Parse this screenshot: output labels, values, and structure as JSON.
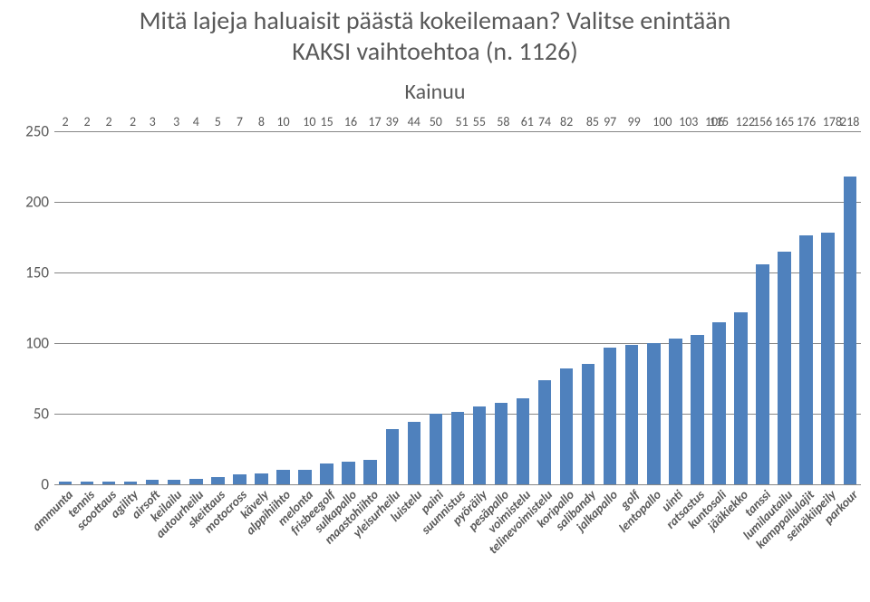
{
  "title_line1": "Mitä lajeja haluaisit päästä kokeilemaan? Valitse enintään",
  "title_line2": "KAKSI vaihtoehtoa (n. 1126)",
  "region_label": "Kainuu",
  "chart": {
    "type": "bar",
    "ylim": [
      0,
      250
    ],
    "ytick_step": 50,
    "yticks": [
      0,
      50,
      100,
      150,
      200,
      250
    ],
    "bar_color": "#4f81bd",
    "grid_color": "#868686",
    "background_color": "#ffffff",
    "text_color": "#595959",
    "title_fontsize": 28,
    "region_fontsize": 24,
    "axis_fontsize": 17,
    "value_fontsize": 14,
    "category_fontsize": 14,
    "bar_width_ratio": 0.6,
    "categories": [
      "ammunta",
      "tennis",
      "scoottaus",
      "agility",
      "airsoft",
      "keilailu",
      "autourheilu",
      "skeittaus",
      "motocross",
      "kävely",
      "alppihiihto",
      "melonta",
      "frisbeegolf",
      "sulkapallo",
      "maastohiihto",
      "yleisurheilu",
      "luistelu",
      "paini",
      "suunnistus",
      "pyöräily",
      "pesäpallo",
      "voimistelu",
      "telinevoimistelu",
      "koripallo",
      "salibandy",
      "jalkapallo",
      "golf",
      "lentopallo",
      "uinti",
      "ratsastus",
      "kuntosali",
      "jääkiekko",
      "tanssi",
      "lumilautailu",
      "kamppailulajit",
      "seinäkiipeily",
      "parkour"
    ],
    "values": [
      2,
      2,
      2,
      2,
      3,
      3,
      4,
      5,
      7,
      8,
      10,
      10,
      15,
      16,
      17,
      39,
      44,
      50,
      51,
      55,
      58,
      61,
      74,
      82,
      85,
      97,
      99,
      100,
      103,
      106,
      115,
      122,
      156,
      165,
      176,
      178,
      218
    ],
    "value_label_x_offset_pct": [
      0,
      0,
      0,
      5,
      0,
      5,
      0,
      0,
      0,
      0,
      0,
      10,
      0,
      5,
      10,
      0,
      0,
      0,
      10,
      0,
      5,
      10,
      0,
      0,
      10,
      0,
      5,
      20,
      30,
      40,
      0,
      10,
      0,
      0,
      0,
      10,
      0
    ]
  }
}
